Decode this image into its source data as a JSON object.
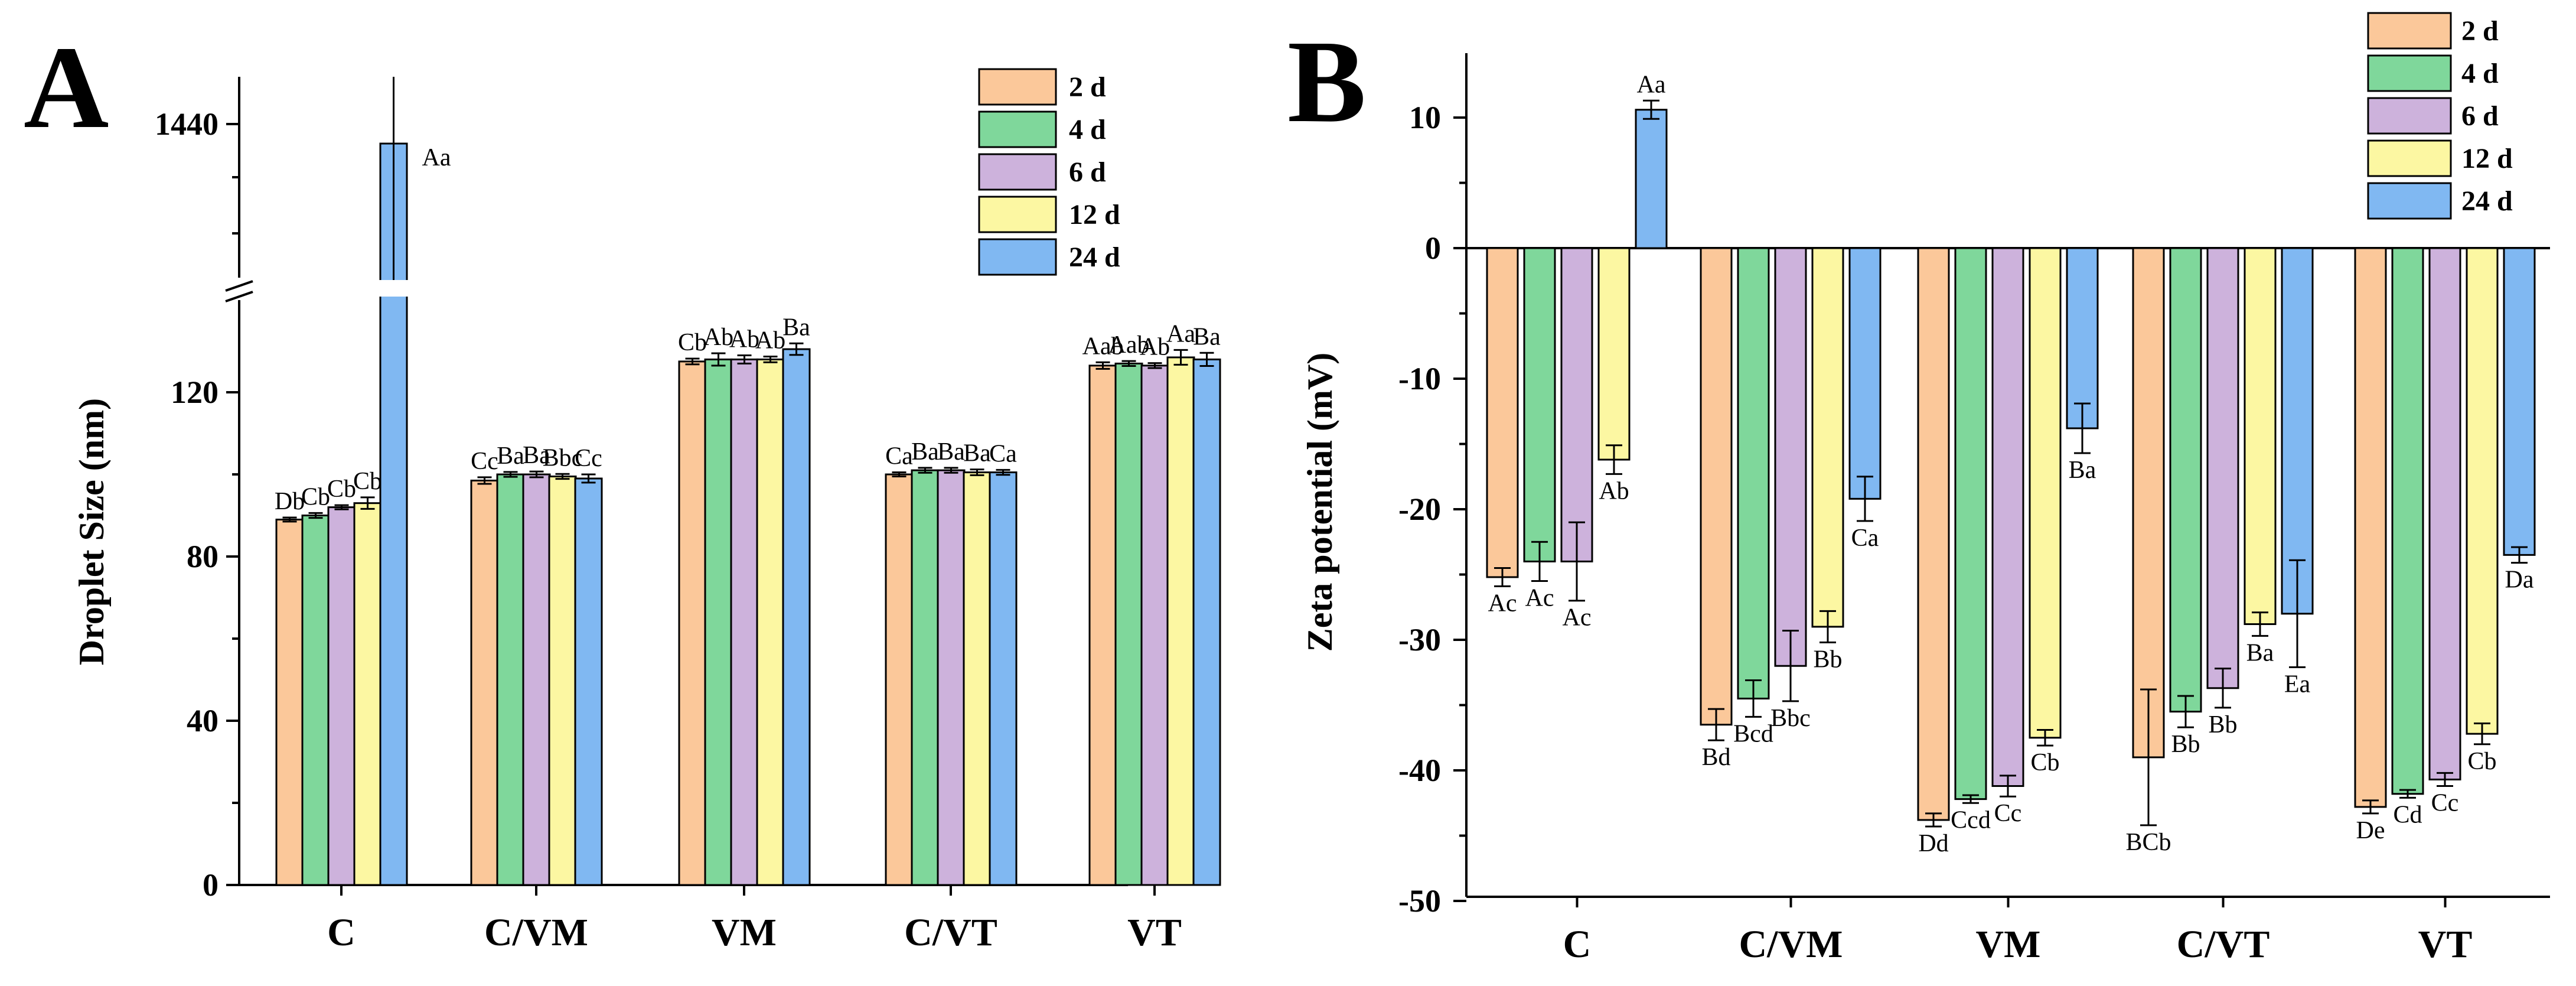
{
  "colors": {
    "2 d": "#FBC89A",
    "4 d": "#7FD79B",
    "6 d": "#CDB2DC",
    "12 d": "#FCF7A2",
    "24 d": "#80B8F2"
  },
  "chart_data": [
    {
      "type": "bar",
      "panel": "A",
      "ylabel": "Droplet Size (nm)",
      "categories": [
        "C",
        "C/VM",
        "VM",
        "C/VT",
        "VT"
      ],
      "yticks": [
        "0",
        "40",
        "80",
        "120",
        "1440"
      ],
      "y_break": [
        135,
        1400
      ],
      "legend_placement": "top-right",
      "series": [
        {
          "name": "2 d",
          "values": [
            89,
            98.5,
            127.5,
            100,
            126.5
          ],
          "errors": [
            0.5,
            0.8,
            0.7,
            0.5,
            0.8
          ],
          "labels": [
            "Db",
            "Cc",
            "Cb",
            "Ca",
            "Aab"
          ]
        },
        {
          "name": "4 d",
          "values": [
            90,
            100,
            128,
            101,
            127
          ],
          "errors": [
            0.6,
            0.6,
            1.5,
            0.6,
            0.6
          ],
          "labels": [
            "Cb",
            "Ba",
            "Ab",
            "Ba",
            "Aab"
          ]
        },
        {
          "name": "6 d",
          "values": [
            92,
            100,
            128,
            101,
            126.5
          ],
          "errors": [
            0.5,
            0.7,
            1.0,
            0.6,
            0.6
          ],
          "labels": [
            "Cb",
            "Ba",
            "Ab",
            "Ba",
            "Ab"
          ]
        },
        {
          "name": "12 d",
          "values": [
            93,
            99.5,
            128,
            100.5,
            128.5
          ],
          "errors": [
            1.4,
            0.6,
            0.7,
            0.7,
            1.8
          ],
          "labels": [
            "Cb",
            "Bbc",
            "Ab",
            "Ba",
            "Aa"
          ]
        },
        {
          "name": "24 d",
          "values": [
            1430,
            99,
            130.5,
            100.5,
            128
          ],
          "errors": [
            60,
            1.0,
            1.4,
            0.6,
            1.6
          ],
          "labels": [
            "Aa",
            "Cc",
            "Ba",
            "Ca",
            "Ba"
          ]
        }
      ]
    },
    {
      "type": "bar",
      "panel": "B",
      "ylabel": "Zeta potential (mV)",
      "categories": [
        "C",
        "C/VM",
        "VM",
        "C/VT",
        "VT"
      ],
      "yticks": [
        "10",
        "0",
        "-10",
        "-20",
        "-30",
        "-40",
        "-50"
      ],
      "ylim": [
        -50,
        15
      ],
      "legend_placement": "top-right",
      "series": [
        {
          "name": "2 d",
          "values": [
            -25.2,
            -36.5,
            -43.8,
            -39,
            -42.8
          ],
          "errors": [
            0.7,
            1.2,
            0.5,
            5.2,
            0.5
          ],
          "labels": [
            "Ac",
            "Bd",
            "Dd",
            "BCb",
            "De"
          ]
        },
        {
          "name": "4 d",
          "values": [
            -24,
            -34.5,
            -42.2,
            -35.5,
            -41.8
          ],
          "errors": [
            1.5,
            1.4,
            0.3,
            1.2,
            0.3
          ],
          "labels": [
            "Ac",
            "Bcd",
            "Ccd",
            "Bb",
            "Cd"
          ]
        },
        {
          "name": "6 d",
          "values": [
            -24,
            -32,
            -41.2,
            -33.7,
            -40.7
          ],
          "errors": [
            3.0,
            2.7,
            0.8,
            1.5,
            0.5
          ],
          "labels": [
            "Ac",
            "Bbc",
            "Cc",
            "Bb",
            "Cc"
          ]
        },
        {
          "name": "12 d",
          "values": [
            -16.2,
            -29,
            -37.5,
            -28.8,
            -37.2
          ],
          "errors": [
            1.1,
            1.2,
            0.6,
            0.9,
            0.8
          ],
          "labels": [
            "Ab",
            "Bb",
            "Cb",
            "Ba",
            "Cb"
          ]
        },
        {
          "name": "24 d",
          "values": [
            10.6,
            -19.2,
            -13.8,
            -28,
            -23.5
          ],
          "errors": [
            0.7,
            1.7,
            1.9,
            4.1,
            0.6
          ],
          "labels": [
            "Aa",
            "Ca",
            "Ba",
            "Ea",
            "Da"
          ]
        }
      ]
    }
  ]
}
